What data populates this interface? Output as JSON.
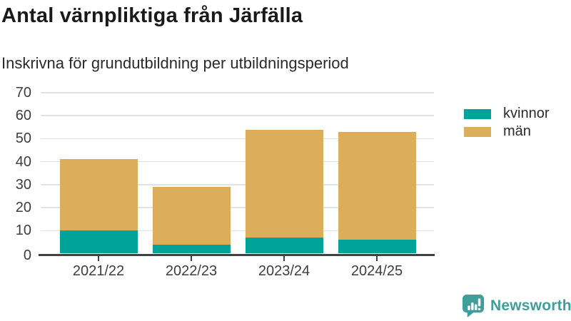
{
  "header": {
    "title": "Antal värnpliktiga från Järfälla",
    "subtitle": "Inskrivna för grundutbildning per utbildningsperiod"
  },
  "chart_data": {
    "type": "bar",
    "stacked": true,
    "title": "Antal värnpliktiga från Järfälla",
    "subtitle": "Inskrivna för grundutbildning per utbildningsperiod",
    "categories": [
      "2021/22",
      "2022/23",
      "2023/24",
      "2024/25"
    ],
    "series": [
      {
        "name": "kvinnor",
        "color": "#00a398",
        "values": [
          10,
          4,
          7,
          6
        ]
      },
      {
        "name": "män",
        "color": "#dcad5b",
        "values": [
          31,
          25,
          47,
          47
        ]
      }
    ],
    "stack_totals": [
      41,
      29,
      54,
      53
    ],
    "xlabel": "",
    "ylabel": "",
    "ylim": [
      0,
      70
    ],
    "yticks": [
      0,
      10,
      20,
      30,
      40,
      50,
      60,
      70
    ],
    "grid": true,
    "legend_position": "right"
  },
  "legend": {
    "items": [
      {
        "label": "kvinnor",
        "color": "#00a398"
      },
      {
        "label": "män",
        "color": "#dcad5b"
      }
    ]
  },
  "footer": {
    "brand": "Newsworthy"
  },
  "colors": {
    "kvinnor": "#00a398",
    "man": "#dcad5b",
    "grid": "#e2e2e2",
    "axis": "#414141",
    "tick_text": "#3d3d3d",
    "title_text": "#1a1a1a",
    "brand_teal": "#3f9e99"
  }
}
